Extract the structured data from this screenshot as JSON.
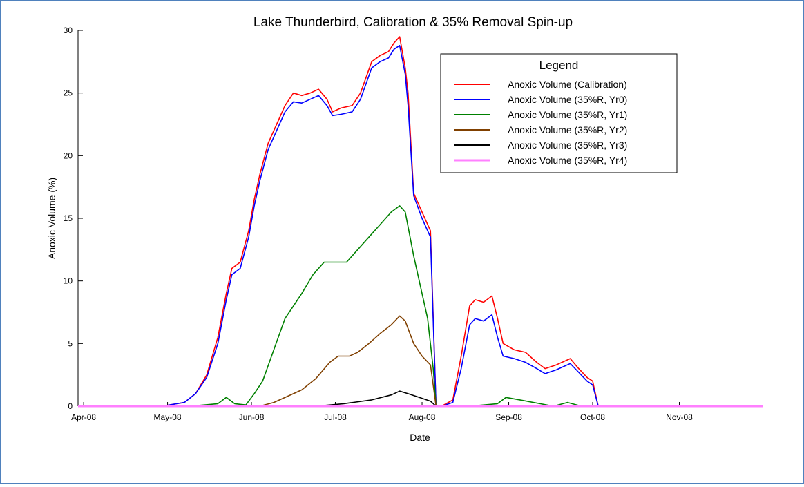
{
  "chart_data": {
    "type": "line",
    "title": "Lake Thunderbird, Calibration & 35% Removal Spin-up",
    "x_label": "Date",
    "y_label": "Anoxic Volume (%)",
    "legend_title": "Legend",
    "xlim": [
      0,
      245
    ],
    "ylim": [
      0,
      30
    ],
    "xticks": [
      {
        "value": 2,
        "label": "Apr-08"
      },
      {
        "value": 32,
        "label": "May-08"
      },
      {
        "value": 62,
        "label": "Jun-08"
      },
      {
        "value": 92,
        "label": "Jul-08"
      },
      {
        "value": 123,
        "label": "Aug-08"
      },
      {
        "value": 154,
        "label": "Sep-08"
      },
      {
        "value": 184,
        "label": "Oct-08"
      },
      {
        "value": 215,
        "label": "Nov-08"
      }
    ],
    "yticks": [
      0,
      5,
      10,
      15,
      20,
      25,
      30
    ],
    "legend": "upper right",
    "series": [
      {
        "name": "Anoxic Volume (Calibration)",
        "color": "#ff0000",
        "x": [
          0,
          30,
          38,
          42,
          46,
          50,
          53,
          55,
          58,
          61,
          63,
          65,
          68,
          71,
          74,
          77,
          80,
          83,
          86,
          89,
          91,
          94,
          98,
          101,
          105,
          108,
          111,
          113,
          115,
          117,
          118,
          120,
          123,
          126,
          128,
          130,
          134,
          137,
          140,
          142,
          145,
          148,
          150,
          152,
          156,
          160,
          164,
          167,
          171,
          176,
          179,
          182,
          184,
          186,
          200,
          245
        ],
        "values": [
          0,
          0,
          0.3,
          1,
          2.5,
          5.5,
          9,
          11,
          11.5,
          14,
          16.5,
          18.5,
          21,
          22.5,
          24,
          25,
          24.8,
          25,
          25.3,
          24.5,
          23.5,
          23.8,
          24,
          25,
          27.5,
          28,
          28.3,
          29,
          29.5,
          27,
          25,
          17,
          15.5,
          14,
          0,
          0,
          0.5,
          4,
          8,
          8.5,
          8.3,
          8.8,
          7,
          5,
          4.5,
          4.3,
          3.5,
          3,
          3.3,
          3.8,
          3,
          2.3,
          2,
          0,
          0,
          0
        ]
      },
      {
        "name": "Anoxic Volume (35%R, Yr0)",
        "color": "#0000ff",
        "x": [
          0,
          30,
          38,
          42,
          46,
          50,
          53,
          55,
          58,
          61,
          63,
          65,
          68,
          71,
          74,
          77,
          80,
          83,
          86,
          89,
          91,
          94,
          98,
          101,
          105,
          108,
          111,
          113,
          115,
          117,
          118,
          120,
          123,
          126,
          128,
          130,
          134,
          137,
          140,
          142,
          145,
          148,
          150,
          152,
          156,
          160,
          164,
          167,
          171,
          176,
          179,
          182,
          184,
          186,
          200,
          245
        ],
        "values": [
          0,
          0,
          0.3,
          1,
          2.3,
          5,
          8.5,
          10.5,
          11,
          13.5,
          16,
          18,
          20.5,
          22,
          23.5,
          24.3,
          24.2,
          24.5,
          24.8,
          24,
          23.2,
          23.3,
          23.5,
          24.5,
          27,
          27.5,
          27.8,
          28.5,
          28.8,
          26.5,
          24,
          16.8,
          15,
          13.5,
          0,
          0,
          0.3,
          3,
          6.5,
          7,
          6.8,
          7.3,
          5.5,
          4,
          3.8,
          3.5,
          3,
          2.6,
          2.9,
          3.4,
          2.7,
          2,
          1.7,
          0,
          0,
          0
        ]
      },
      {
        "name": "Anoxic Volume (35%R, Yr1)",
        "color": "#008000",
        "x": [
          0,
          40,
          50,
          53,
          56,
          60,
          63,
          66,
          70,
          74,
          77,
          80,
          84,
          88,
          92,
          96,
          100,
          104,
          108,
          112,
          115,
          117,
          120,
          123,
          125,
          127,
          128,
          140,
          150,
          153,
          158,
          170,
          175,
          180,
          245
        ],
        "values": [
          0,
          0,
          0.2,
          0.7,
          0.2,
          0.1,
          1,
          2,
          4.5,
          7,
          8,
          9,
          10.5,
          11.5,
          11.5,
          11.5,
          12.5,
          13.5,
          14.5,
          15.5,
          16,
          15.5,
          12,
          9,
          7,
          3,
          0,
          0,
          0.2,
          0.7,
          0.5,
          0,
          0.3,
          0,
          0
        ]
      },
      {
        "name": "Anoxic Volume (35%R, Yr2)",
        "color": "#804000",
        "x": [
          0,
          65,
          70,
          75,
          80,
          85,
          90,
          93,
          97,
          100,
          104,
          108,
          112,
          115,
          117,
          120,
          123,
          126,
          128,
          245
        ],
        "values": [
          0,
          0,
          0.3,
          0.8,
          1.3,
          2.2,
          3.5,
          4,
          4,
          4.3,
          5,
          5.8,
          6.5,
          7.2,
          6.8,
          5,
          4,
          3.3,
          0,
          0
        ]
      },
      {
        "name": "Anoxic Volume (35%R, Yr3)",
        "color": "#000000",
        "x": [
          0,
          85,
          95,
          105,
          112,
          115,
          118,
          122,
          126,
          128,
          245
        ],
        "values": [
          0,
          0,
          0.2,
          0.5,
          0.9,
          1.2,
          1,
          0.7,
          0.4,
          0,
          0
        ]
      },
      {
        "name": "Anoxic Volume (35%R, Yr4)",
        "color": "#ff80ff",
        "x": [
          0,
          245
        ],
        "values": [
          0,
          0
        ]
      }
    ]
  }
}
